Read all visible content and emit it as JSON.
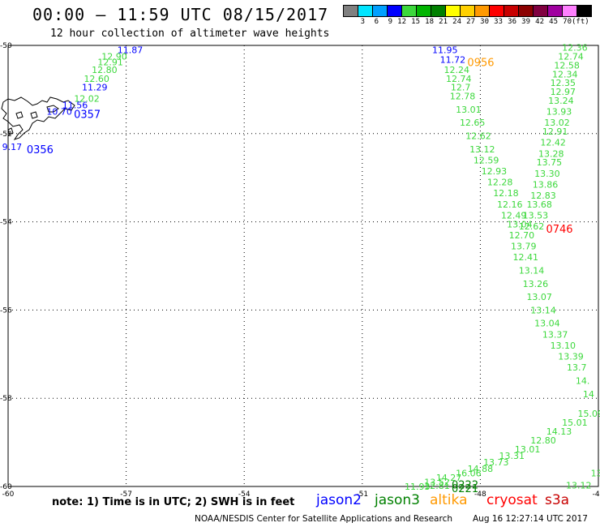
{
  "header": {
    "title": "00:00 – 11:59 UTC 08/15/2017",
    "subtitle": "12 hour collection of altimeter wave heights"
  },
  "colorbar": {
    "colors": [
      "#808080",
      "#00e5ff",
      "#00a0ff",
      "#0000ff",
      "#3cd83c",
      "#00b400",
      "#008000",
      "#ffff00",
      "#ffd000",
      "#ff9900",
      "#ff0000",
      "#c80000",
      "#8b0000",
      "#800040",
      "#a000a0",
      "#ff80ff",
      "#000000"
    ],
    "labels": [
      "",
      "3",
      "6",
      "9",
      "12",
      "15",
      "18",
      "21",
      "24",
      "27",
      "30",
      "33",
      "36",
      "39",
      "42",
      "45",
      "70",
      "(ft)"
    ]
  },
  "map": {
    "lat_labels": [
      "-50",
      "-52",
      "-54",
      "-56",
      "-58",
      "-60"
    ],
    "lon_labels": [
      "-60",
      "-57",
      "-54",
      "-51",
      "-48",
      "-45"
    ],
    "passes": [
      {
        "satellite": "jason2",
        "color": "#0000ff",
        "time": "0357",
        "time_color": "#0000ff",
        "points": [
          {
            "lon": -56.9,
            "lat": -50.1,
            "v": "11.87"
          },
          {
            "lon": -57.8,
            "lat": -50.95,
            "v": "11.29"
          },
          {
            "lon": -58.3,
            "lat": -51.35,
            "v": "11.56"
          },
          {
            "lon": -58.7,
            "lat": -51.5,
            "v": "10.70"
          }
        ]
      },
      {
        "satellite": "jason3",
        "color": "#3cd83c",
        "time": "",
        "time_color": "#008000",
        "points": [
          {
            "lon": -57.3,
            "lat": -50.25,
            "v": "12.90"
          },
          {
            "lon": -57.4,
            "lat": -50.38,
            "v": "12.91"
          },
          {
            "lon": -57.55,
            "lat": -50.55,
            "v": "12.80"
          },
          {
            "lon": -57.75,
            "lat": -50.75,
            "v": "12.60"
          },
          {
            "lon": -58.0,
            "lat": -51.2,
            "v": "12.02"
          }
        ]
      },
      {
        "satellite": "jason2",
        "color": "#0000ff",
        "time": "0356",
        "time_color": "#0000ff",
        "points": [
          {
            "lon": -59.9,
            "lat": -52.3,
            "v": "9.17"
          }
        ]
      },
      {
        "satellite": "jason2",
        "color": "#0000ff",
        "time": "0956",
        "time_color": "#ff9900",
        "points": [
          {
            "lon": -48.9,
            "lat": -50.1,
            "v": "11.95"
          },
          {
            "lon": -48.7,
            "lat": -50.32,
            "v": "11.72"
          }
        ]
      },
      {
        "satellite": "jason3",
        "color": "#3cd83c",
        "time": "0955",
        "time_color": "#ff9900",
        "points": [
          {
            "lon": -48.6,
            "lat": -50.55,
            "v": "12.24"
          },
          {
            "lon": -48.55,
            "lat": -50.75,
            "v": "12.74"
          },
          {
            "lon": -48.5,
            "lat": -50.95,
            "v": "12.7"
          },
          {
            "lon": -48.45,
            "lat": -51.15,
            "v": "12.78"
          },
          {
            "lon": -48.3,
            "lat": -51.45,
            "v": "13.01"
          },
          {
            "lon": -48.2,
            "lat": -51.75,
            "v": "12.65"
          },
          {
            "lon": -48.05,
            "lat": -52.05,
            "v": "12.62"
          },
          {
            "lon": -47.95,
            "lat": -52.35,
            "v": "13.12"
          },
          {
            "lon": -47.85,
            "lat": -52.6,
            "v": "12.59"
          },
          {
            "lon": -47.65,
            "lat": -52.85,
            "v": "12.93"
          },
          {
            "lon": -47.5,
            "lat": -53.1,
            "v": "12.28"
          },
          {
            "lon": -47.35,
            "lat": -53.35,
            "v": "12.18"
          },
          {
            "lon": -47.25,
            "lat": -53.6,
            "v": "12.16"
          },
          {
            "lon": -47.15,
            "lat": -53.85,
            "v": "12.49"
          },
          {
            "lon": -47.0,
            "lat": -54.05,
            "v": "13.04"
          },
          {
            "lon": -46.95,
            "lat": -54.3,
            "v": "12.70"
          },
          {
            "lon": -46.9,
            "lat": -54.55,
            "v": "13.79"
          },
          {
            "lon": -46.85,
            "lat": -54.8,
            "v": "12.41"
          },
          {
            "lon": -46.7,
            "lat": -55.1,
            "v": "13.14"
          },
          {
            "lon": -46.6,
            "lat": -55.4,
            "v": "13.26"
          },
          {
            "lon": -46.5,
            "lat": -55.7,
            "v": "13.07"
          },
          {
            "lon": -46.4,
            "lat": -56.0,
            "v": "13.14"
          },
          {
            "lon": -46.3,
            "lat": -56.3,
            "v": "13.04"
          },
          {
            "lon": -46.1,
            "lat": -56.55,
            "v": "13.37"
          },
          {
            "lon": -45.9,
            "lat": -56.8,
            "v": "13.10"
          },
          {
            "lon": -45.7,
            "lat": -57.05,
            "v": "13.39"
          },
          {
            "lon": -45.55,
            "lat": -57.3,
            "v": "13.7"
          },
          {
            "lon": -45.4,
            "lat": -57.6,
            "v": "14."
          },
          {
            "lon": -45.25,
            "lat": -57.9,
            "v": "14"
          }
        ]
      },
      {
        "satellite": "jason3",
        "color": "#3cd83c",
        "time": "0746",
        "time_color": "#ff0000",
        "points": [
          {
            "lon": -45.6,
            "lat": -50.05,
            "v": "12.36"
          },
          {
            "lon": -45.7,
            "lat": -50.25,
            "v": "12.74"
          },
          {
            "lon": -45.8,
            "lat": -50.45,
            "v": "12.58"
          },
          {
            "lon": -45.85,
            "lat": -50.65,
            "v": "12.34"
          },
          {
            "lon": -45.9,
            "lat": -50.85,
            "v": "12.35"
          },
          {
            "lon": -45.9,
            "lat": -51.05,
            "v": "12.97"
          },
          {
            "lon": -45.95,
            "lat": -51.25,
            "v": "13.24"
          },
          {
            "lon": -46.0,
            "lat": -51.5,
            "v": "13.93"
          },
          {
            "lon": -46.05,
            "lat": -51.75,
            "v": "13.02"
          },
          {
            "lon": -46.1,
            "lat": -51.95,
            "v": "12.91"
          },
          {
            "lon": -46.15,
            "lat": -52.2,
            "v": "12.42"
          },
          {
            "lon": -46.2,
            "lat": -52.45,
            "v": "13.28"
          },
          {
            "lon": -46.25,
            "lat": -52.65,
            "v": "13.75"
          },
          {
            "lon": -46.3,
            "lat": -52.9,
            "v": "13.30"
          },
          {
            "lon": -46.35,
            "lat": -53.15,
            "v": "13.86"
          },
          {
            "lon": -46.4,
            "lat": -53.4,
            "v": "12.83"
          },
          {
            "lon": -46.5,
            "lat": -53.6,
            "v": "13.68"
          },
          {
            "lon": -46.6,
            "lat": -53.85,
            "v": "13.53"
          },
          {
            "lon": -46.7,
            "lat": -54.1,
            "v": "12.62"
          }
        ]
      },
      {
        "satellite": "jason3",
        "color": "#3cd83c",
        "time": "0222",
        "time_color": "#008000",
        "points": [
          {
            "lon": -45.2,
            "lat": -58.35,
            "v": "15.09"
          },
          {
            "lon": -45.6,
            "lat": -58.55,
            "v": "15.01"
          },
          {
            "lon": -46.0,
            "lat": -58.75,
            "v": "14.13"
          },
          {
            "lon": -46.4,
            "lat": -58.95,
            "v": "12.80"
          },
          {
            "lon": -46.8,
            "lat": -59.15,
            "v": "13.01"
          },
          {
            "lon": -47.2,
            "lat": -59.3,
            "v": "13.31"
          },
          {
            "lon": -47.6,
            "lat": -59.45,
            "v": "13.73"
          },
          {
            "lon": -48.0,
            "lat": -59.6,
            "v": "14.88"
          },
          {
            "lon": -48.3,
            "lat": -59.7,
            "v": "16.06"
          },
          {
            "lon": -48.8,
            "lat": -59.8,
            "v": "14.27"
          },
          {
            "lon": -49.1,
            "lat": -59.9,
            "v": "13.52"
          }
        ]
      },
      {
        "satellite": "jason3",
        "color": "#3cd83c",
        "time": "0221",
        "time_color": "#008000",
        "points": [
          {
            "lon": -49.6,
            "lat": -60.0,
            "v": "11.93"
          },
          {
            "lon": -49.1,
            "lat": -59.98,
            "v": "12.81"
          }
        ]
      },
      {
        "satellite": "jason3",
        "color": "#3cd83c",
        "time": "",
        "time_color": "#008000",
        "points": [
          {
            "lon": -45.5,
            "lat": -59.97,
            "v": "13.12"
          },
          {
            "lon": -45.05,
            "lat": -59.7,
            "v": "13"
          }
        ]
      }
    ]
  },
  "footnote": "note: 1) Time is in UTC; 2) SWH is in feet",
  "legend": [
    {
      "label": "jason2",
      "color": "#0000ff"
    },
    {
      "label": "jason3",
      "color": "#008000"
    },
    {
      "label": "altika",
      "color": "#ff9900"
    },
    {
      "label": "cryosat",
      "color": "#ff0000"
    },
    {
      "label": "s3a",
      "color": "#c80000"
    }
  ],
  "credit": "NOAA/NESDIS Center for Satellite Applications and Research",
  "timestamp": "Aug 16 12:27:14 UTC 2017"
}
